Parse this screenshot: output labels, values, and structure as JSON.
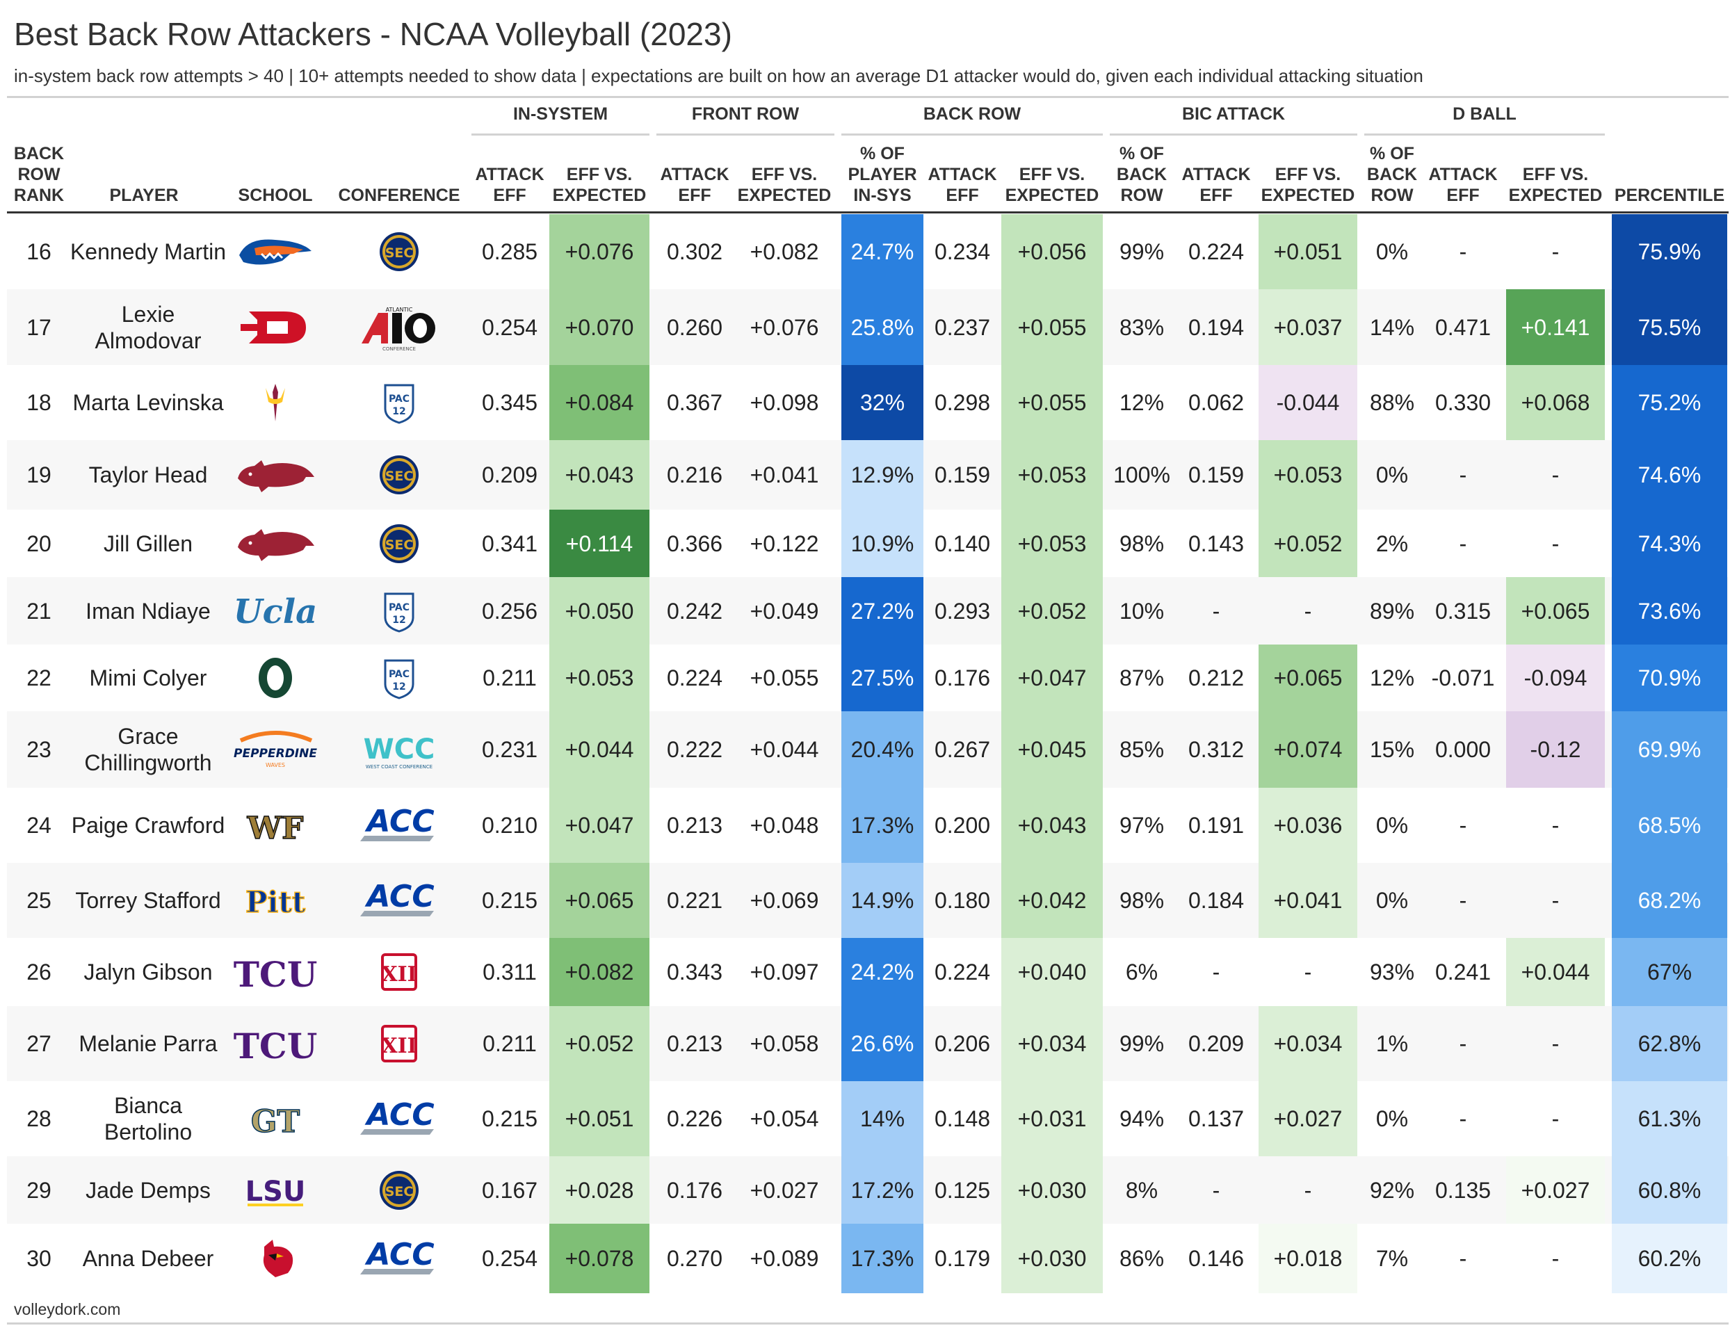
{
  "title": "Best Back Row Attackers - NCAA Volleyball (2023)",
  "subtitle": "in-system back row attempts > 40 | 10+ attempts needed to show data | expectations are built on how an average D1 attacker would do, given each individual attacking situation",
  "footer": "volleydork.com",
  "groups": {
    "in_system": "IN-SYSTEM",
    "front_row": "FRONT ROW",
    "back_row": "BACK ROW",
    "bic_attack": "BIC ATTACK",
    "d_ball": "D BALL"
  },
  "columns": {
    "rank": "BACK ROW RANK",
    "player": "PLAYER",
    "school": "SCHOOL",
    "conference": "CONFERENCE",
    "is_eff": "ATTACK EFF",
    "is_vs": "EFF VS. EXPECTED",
    "fr_eff": "ATTACK EFF",
    "fr_vs": "EFF VS. EXPECTED",
    "br_pct": "% OF PLAYER IN-SYS",
    "br_eff": "ATTACK EFF",
    "br_vs": "EFF VS. EXPECTED",
    "bic_pct": "% OF BACK ROW",
    "bic_eff": "ATTACK EFF",
    "bic_vs": "EFF VS. EXPECTED",
    "db_pct": "% OF BACK ROW",
    "db_eff": "ATTACK EFF",
    "db_vs": "EFF VS. EXPECTED",
    "percentile": "PERCENTILE"
  },
  "colors": {
    "green_scale": [
      "#f4faf2",
      "#dbefd6",
      "#c2e4bb",
      "#a4d39b",
      "#7fbf76",
      "#57a457",
      "#3a8a42"
    ],
    "purple_light": "#efe3f2",
    "purple_mid": "#e1cfe8",
    "blue_scale": [
      "#e6f2fd",
      "#c6e1fb",
      "#a3cdf7",
      "#7ab7f1",
      "#4f9de9",
      "#2a80df",
      "#1668cf",
      "#0d4aa6"
    ]
  },
  "chart_data": {
    "type": "table",
    "title": "Best Back Row Attackers - NCAA Volleyball (2023)",
    "rows": [
      {
        "rank": "16",
        "player": "Kennedy Martin",
        "school": "Florida",
        "conference": "SEC",
        "school_logo": "florida-gator-icon",
        "conf_logo": "sec-logo-icon",
        "conf_label": "SEC",
        "school_label": "",
        "is_eff": "0.285",
        "is_vs": "+0.076",
        "fr_eff": "0.302",
        "fr_vs": "+0.082",
        "br_pct": "24.7%",
        "br_eff": "0.234",
        "br_vs": "+0.056",
        "bic_pct": "99%",
        "bic_eff": "0.224",
        "bic_vs": "+0.051",
        "db_pct": "0%",
        "db_eff": "-",
        "db_vs": "-",
        "percentile": "75.9%",
        "percentile_value": 75.9,
        "is_vs_value": 0.076,
        "br_pct_value": 24.7,
        "br_vs_value": 0.056,
        "bic_vs_value": 0.051,
        "db_vs_value": null
      },
      {
        "rank": "17",
        "player": "Lexie Almodovar",
        "school": "Dayton",
        "conference": "A10",
        "school_logo": "dayton-d-icon",
        "conf_logo": "a10-logo-icon",
        "conf_label": "A10",
        "school_label": "D",
        "is_eff": "0.254",
        "is_vs": "+0.070",
        "fr_eff": "0.260",
        "fr_vs": "+0.076",
        "br_pct": "25.8%",
        "br_eff": "0.237",
        "br_vs": "+0.055",
        "bic_pct": "83%",
        "bic_eff": "0.194",
        "bic_vs": "+0.037",
        "db_pct": "14%",
        "db_eff": "0.471",
        "db_vs": "+0.141",
        "percentile": "75.5%",
        "percentile_value": 75.5,
        "is_vs_value": 0.07,
        "br_pct_value": 25.8,
        "br_vs_value": 0.055,
        "bic_vs_value": 0.037,
        "db_vs_value": 0.141
      },
      {
        "rank": "18",
        "player": "Marta Levinska",
        "school": "Arizona State",
        "conference": "Pac-12",
        "school_logo": "pitchfork-icon",
        "conf_logo": "pac12-logo-icon",
        "conf_label": "PAC 12",
        "school_label": "",
        "is_eff": "0.345",
        "is_vs": "+0.084",
        "fr_eff": "0.367",
        "fr_vs": "+0.098",
        "br_pct": "32%",
        "br_eff": "0.298",
        "br_vs": "+0.055",
        "bic_pct": "12%",
        "bic_eff": "0.062",
        "bic_vs": "-0.044",
        "db_pct": "88%",
        "db_eff": "0.330",
        "db_vs": "+0.068",
        "percentile": "75.2%",
        "percentile_value": 75.2,
        "is_vs_value": 0.084,
        "br_pct_value": 32.0,
        "br_vs_value": 0.055,
        "bic_vs_value": -0.044,
        "db_vs_value": 0.068
      },
      {
        "rank": "19",
        "player": "Taylor Head",
        "school": "Arkansas",
        "conference": "SEC",
        "school_logo": "razorback-icon",
        "conf_logo": "sec-logo-icon",
        "conf_label": "SEC",
        "school_label": "",
        "is_eff": "0.209",
        "is_vs": "+0.043",
        "fr_eff": "0.216",
        "fr_vs": "+0.041",
        "br_pct": "12.9%",
        "br_eff": "0.159",
        "br_vs": "+0.053",
        "bic_pct": "100%",
        "bic_eff": "0.159",
        "bic_vs": "+0.053",
        "db_pct": "0%",
        "db_eff": "-",
        "db_vs": "-",
        "percentile": "74.6%",
        "percentile_value": 74.6,
        "is_vs_value": 0.043,
        "br_pct_value": 12.9,
        "br_vs_value": 0.053,
        "bic_vs_value": 0.053,
        "db_vs_value": null
      },
      {
        "rank": "20",
        "player": "Jill Gillen",
        "school": "Arkansas",
        "conference": "SEC",
        "school_logo": "razorback-icon",
        "conf_logo": "sec-logo-icon",
        "conf_label": "SEC",
        "school_label": "",
        "is_eff": "0.341",
        "is_vs": "+0.114",
        "fr_eff": "0.366",
        "fr_vs": "+0.122",
        "br_pct": "10.9%",
        "br_eff": "0.140",
        "br_vs": "+0.053",
        "bic_pct": "98%",
        "bic_eff": "0.143",
        "bic_vs": "+0.052",
        "db_pct": "2%",
        "db_eff": "-",
        "db_vs": "-",
        "percentile": "74.3%",
        "percentile_value": 74.3,
        "is_vs_value": 0.114,
        "br_pct_value": 10.9,
        "br_vs_value": 0.053,
        "bic_vs_value": 0.052,
        "db_vs_value": null
      },
      {
        "rank": "21",
        "player": "Iman Ndiaye",
        "school": "UCLA",
        "conference": "Pac-12",
        "school_logo": "ucla-script-icon",
        "conf_logo": "pac12-logo-icon",
        "conf_label": "PAC 12",
        "school_label": "Ucla",
        "is_eff": "0.256",
        "is_vs": "+0.050",
        "fr_eff": "0.242",
        "fr_vs": "+0.049",
        "br_pct": "27.2%",
        "br_eff": "0.293",
        "br_vs": "+0.052",
        "bic_pct": "10%",
        "bic_eff": "-",
        "bic_vs": "-",
        "db_pct": "89%",
        "db_eff": "0.315",
        "db_vs": "+0.065",
        "percentile": "73.6%",
        "percentile_value": 73.6,
        "is_vs_value": 0.05,
        "br_pct_value": 27.2,
        "br_vs_value": 0.052,
        "bic_vs_value": null,
        "db_vs_value": 0.065
      },
      {
        "rank": "22",
        "player": "Mimi Colyer",
        "school": "Oregon",
        "conference": "Pac-12",
        "school_logo": "oregon-o-icon",
        "conf_logo": "pac12-logo-icon",
        "conf_label": "PAC 12",
        "school_label": "",
        "is_eff": "0.211",
        "is_vs": "+0.053",
        "fr_eff": "0.224",
        "fr_vs": "+0.055",
        "br_pct": "27.5%",
        "br_eff": "0.176",
        "br_vs": "+0.047",
        "bic_pct": "87%",
        "bic_eff": "0.212",
        "bic_vs": "+0.065",
        "db_pct": "12%",
        "db_eff": "-0.071",
        "db_vs": "-0.094",
        "percentile": "70.9%",
        "percentile_value": 70.9,
        "is_vs_value": 0.053,
        "br_pct_value": 27.5,
        "br_vs_value": 0.047,
        "bic_vs_value": 0.065,
        "db_vs_value": -0.094
      },
      {
        "rank": "23",
        "player": "Grace Chillingworth",
        "school": "Pepperdine",
        "conference": "WCC",
        "school_logo": "pepperdine-wave-icon",
        "conf_logo": "wcc-logo-icon",
        "conf_label": "WCC",
        "school_label": "PEPPERDINE",
        "is_eff": "0.231",
        "is_vs": "+0.044",
        "fr_eff": "0.222",
        "fr_vs": "+0.044",
        "br_pct": "20.4%",
        "br_eff": "0.267",
        "br_vs": "+0.045",
        "bic_pct": "85%",
        "bic_eff": "0.312",
        "bic_vs": "+0.074",
        "db_pct": "15%",
        "db_eff": "0.000",
        "db_vs": "-0.12",
        "percentile": "69.9%",
        "percentile_value": 69.9,
        "is_vs_value": 0.044,
        "br_pct_value": 20.4,
        "br_vs_value": 0.045,
        "bic_vs_value": 0.074,
        "db_vs_value": -0.12
      },
      {
        "rank": "24",
        "player": "Paige Crawford",
        "school": "Wake Forest",
        "conference": "ACC",
        "school_logo": "wf-monogram-icon",
        "conf_logo": "acc-logo-icon",
        "conf_label": "ACC",
        "school_label": "WF",
        "is_eff": "0.210",
        "is_vs": "+0.047",
        "fr_eff": "0.213",
        "fr_vs": "+0.048",
        "br_pct": "17.3%",
        "br_eff": "0.200",
        "br_vs": "+0.043",
        "bic_pct": "97%",
        "bic_eff": "0.191",
        "bic_vs": "+0.036",
        "db_pct": "0%",
        "db_eff": "-",
        "db_vs": "-",
        "percentile": "68.5%",
        "percentile_value": 68.5,
        "is_vs_value": 0.047,
        "br_pct_value": 17.3,
        "br_vs_value": 0.043,
        "bic_vs_value": 0.036,
        "db_vs_value": null
      },
      {
        "rank": "25",
        "player": "Torrey Stafford",
        "school": "Pitt",
        "conference": "ACC",
        "school_logo": "pitt-script-icon",
        "conf_logo": "acc-logo-icon",
        "conf_label": "ACC",
        "school_label": "Pitt",
        "is_eff": "0.215",
        "is_vs": "+0.065",
        "fr_eff": "0.221",
        "fr_vs": "+0.069",
        "br_pct": "14.9%",
        "br_eff": "0.180",
        "br_vs": "+0.042",
        "bic_pct": "98%",
        "bic_eff": "0.184",
        "bic_vs": "+0.041",
        "db_pct": "0%",
        "db_eff": "-",
        "db_vs": "-",
        "percentile": "68.2%",
        "percentile_value": 68.2,
        "is_vs_value": 0.065,
        "br_pct_value": 14.9,
        "br_vs_value": 0.042,
        "bic_vs_value": 0.041,
        "db_vs_value": null
      },
      {
        "rank": "26",
        "player": "Jalyn Gibson",
        "school": "TCU",
        "conference": "Big 12",
        "school_logo": "tcu-wordmark-icon",
        "conf_logo": "big12-logo-icon",
        "conf_label": "XII",
        "school_label": "TCU",
        "is_eff": "0.311",
        "is_vs": "+0.082",
        "fr_eff": "0.343",
        "fr_vs": "+0.097",
        "br_pct": "24.2%",
        "br_eff": "0.224",
        "br_vs": "+0.040",
        "bic_pct": "6%",
        "bic_eff": "-",
        "bic_vs": "-",
        "db_pct": "93%",
        "db_eff": "0.241",
        "db_vs": "+0.044",
        "percentile": "67%",
        "percentile_value": 67.0,
        "is_vs_value": 0.082,
        "br_pct_value": 24.2,
        "br_vs_value": 0.04,
        "bic_vs_value": null,
        "db_vs_value": 0.044
      },
      {
        "rank": "27",
        "player": "Melanie Parra",
        "school": "TCU",
        "conference": "Big 12",
        "school_logo": "tcu-wordmark-icon",
        "conf_logo": "big12-logo-icon",
        "conf_label": "XII",
        "school_label": "TCU",
        "is_eff": "0.211",
        "is_vs": "+0.052",
        "fr_eff": "0.213",
        "fr_vs": "+0.058",
        "br_pct": "26.6%",
        "br_eff": "0.206",
        "br_vs": "+0.034",
        "bic_pct": "99%",
        "bic_eff": "0.209",
        "bic_vs": "+0.034",
        "db_pct": "1%",
        "db_eff": "-",
        "db_vs": "-",
        "percentile": "62.8%",
        "percentile_value": 62.8,
        "is_vs_value": 0.052,
        "br_pct_value": 26.6,
        "br_vs_value": 0.034,
        "bic_vs_value": 0.034,
        "db_vs_value": null
      },
      {
        "rank": "28",
        "player": "Bianca Bertolino",
        "school": "Georgia Tech",
        "conference": "ACC",
        "school_logo": "gt-monogram-icon",
        "conf_logo": "acc-logo-icon",
        "conf_label": "ACC",
        "school_label": "GT",
        "is_eff": "0.215",
        "is_vs": "+0.051",
        "fr_eff": "0.226",
        "fr_vs": "+0.054",
        "br_pct": "14%",
        "br_eff": "0.148",
        "br_vs": "+0.031",
        "bic_pct": "94%",
        "bic_eff": "0.137",
        "bic_vs": "+0.027",
        "db_pct": "0%",
        "db_eff": "-",
        "db_vs": "-",
        "percentile": "61.3%",
        "percentile_value": 61.3,
        "is_vs_value": 0.051,
        "br_pct_value": 14.0,
        "br_vs_value": 0.031,
        "bic_vs_value": 0.027,
        "db_vs_value": null
      },
      {
        "rank": "29",
        "player": "Jade Demps",
        "school": "LSU",
        "conference": "SEC",
        "school_logo": "lsu-wordmark-icon",
        "conf_logo": "sec-logo-icon",
        "conf_label": "SEC",
        "school_label": "LSU",
        "is_eff": "0.167",
        "is_vs": "+0.028",
        "fr_eff": "0.176",
        "fr_vs": "+0.027",
        "br_pct": "17.2%",
        "br_eff": "0.125",
        "br_vs": "+0.030",
        "bic_pct": "8%",
        "bic_eff": "-",
        "bic_vs": "-",
        "db_pct": "92%",
        "db_eff": "0.135",
        "db_vs": "+0.027",
        "percentile": "60.8%",
        "percentile_value": 60.8,
        "is_vs_value": 0.028,
        "br_pct_value": 17.2,
        "br_vs_value": 0.03,
        "bic_vs_value": null,
        "db_vs_value": 0.027
      },
      {
        "rank": "30",
        "player": "Anna Debeer",
        "school": "Louisville",
        "conference": "ACC",
        "school_logo": "cardinal-icon",
        "conf_logo": "acc-logo-icon",
        "conf_label": "ACC",
        "school_label": "",
        "is_eff": "0.254",
        "is_vs": "+0.078",
        "fr_eff": "0.270",
        "fr_vs": "+0.089",
        "br_pct": "17.3%",
        "br_eff": "0.179",
        "br_vs": "+0.030",
        "bic_pct": "86%",
        "bic_eff": "0.146",
        "bic_vs": "+0.018",
        "db_pct": "7%",
        "db_eff": "-",
        "db_vs": "-",
        "percentile": "60.2%",
        "percentile_value": 60.2,
        "is_vs_value": 0.078,
        "br_pct_value": 17.3,
        "br_vs_value": 0.03,
        "bic_vs_value": 0.018,
        "db_vs_value": null
      }
    ]
  }
}
